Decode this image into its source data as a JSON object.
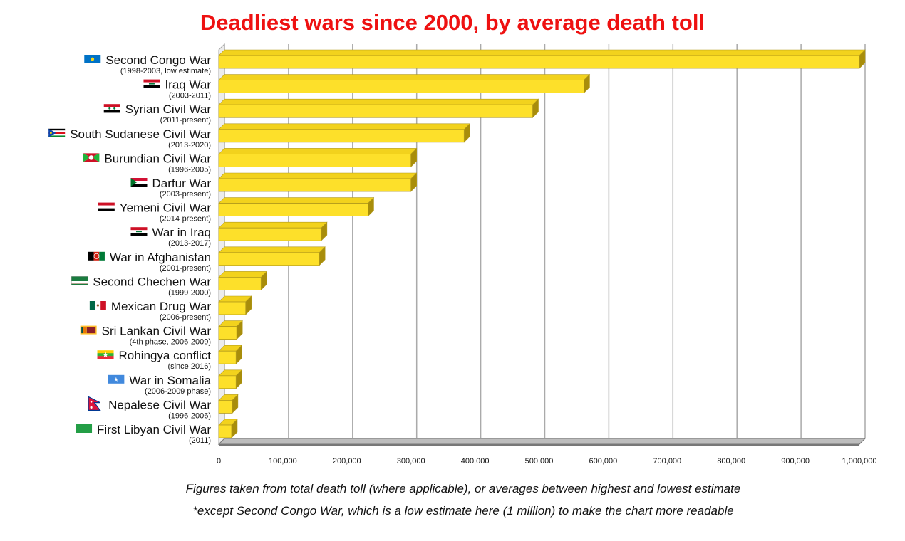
{
  "chart_data": {
    "type": "bar",
    "orientation": "horizontal",
    "title": "Deadliest wars since 2000, by average death toll",
    "categories": [
      {
        "name": "Second Congo War",
        "detail": "(1998-2003, low estimate)",
        "flag": "drc-flag-icon"
      },
      {
        "name": "Iraq War",
        "detail": "(2003-2011)",
        "flag": "iraq-flag-icon"
      },
      {
        "name": "Syrian Civil War",
        "detail": "(2011-present)",
        "flag": "syria-flag-icon"
      },
      {
        "name": "South Sudanese Civil War",
        "detail": "(2013-2020)",
        "flag": "south-sudan-flag-icon"
      },
      {
        "name": "Burundian Civil War",
        "detail": "(1996-2005)",
        "flag": "burundi-flag-icon"
      },
      {
        "name": "Darfur War",
        "detail": "(2003-present)",
        "flag": "sudan-flag-icon"
      },
      {
        "name": "Yemeni Civil War",
        "detail": "(2014-present)",
        "flag": "yemen-flag-icon"
      },
      {
        "name": "War in Iraq",
        "detail": "(2013-2017)",
        "flag": "iraq-flag-icon"
      },
      {
        "name": "War in Afghanistan",
        "detail": "(2001-present)",
        "flag": "afghanistan-flag-icon"
      },
      {
        "name": "Second Chechen War",
        "detail": "(1999-2000)",
        "flag": "chechnya-flag-icon"
      },
      {
        "name": "Mexican Drug War",
        "detail": "(2006-present)",
        "flag": "mexico-flag-icon"
      },
      {
        "name": "Sri Lankan Civil War",
        "detail": "(4th phase, 2006-2009)",
        "flag": "sri-lanka-flag-icon"
      },
      {
        "name": "Rohingya conflict",
        "detail": "(since 2016)",
        "flag": "myanmar-flag-icon"
      },
      {
        "name": "War in Somalia",
        "detail": "(2006-2009 phase)",
        "flag": "somalia-flag-icon"
      },
      {
        "name": "Nepalese Civil War",
        "detail": "(1996-2006)",
        "flag": "nepal-flag-icon"
      },
      {
        "name": "First Libyan Civil War",
        "detail": "(2011)",
        "flag": "libya-flag-icon"
      }
    ],
    "values": [
      1000000,
      570000,
      490000,
      383000,
      300000,
      300000,
      233000,
      160000,
      157000,
      66000,
      42000,
      28000,
      27000,
      27000,
      21000,
      20000
    ],
    "xlim": [
      0,
      1000000
    ],
    "xticks": [
      0,
      100000,
      200000,
      300000,
      400000,
      500000,
      600000,
      700000,
      800000,
      900000,
      1000000
    ],
    "xtick_labels": [
      "0",
      "100,000",
      "200,000",
      "300,000",
      "400,000",
      "500,000",
      "600,000",
      "700,000",
      "800,000",
      "900,000",
      "1,000,000"
    ],
    "xlabel": "",
    "ylabel": "",
    "grid": true,
    "style": "3d-bars",
    "colors": {
      "bar": "#fde02a",
      "bar_top": "#f2d21d",
      "bar_side": "#a88d0b",
      "bar_outline": "#b29a1c",
      "grid": "#aaaaaa",
      "floor": "#777777",
      "title": "#ee1111"
    }
  },
  "footnotes": [
    "Figures taken from total death toll (where applicable), or averages between highest and lowest estimate",
    "*except Second Congo War, which is a low estimate here (1 million) to make the chart more readable"
  ]
}
